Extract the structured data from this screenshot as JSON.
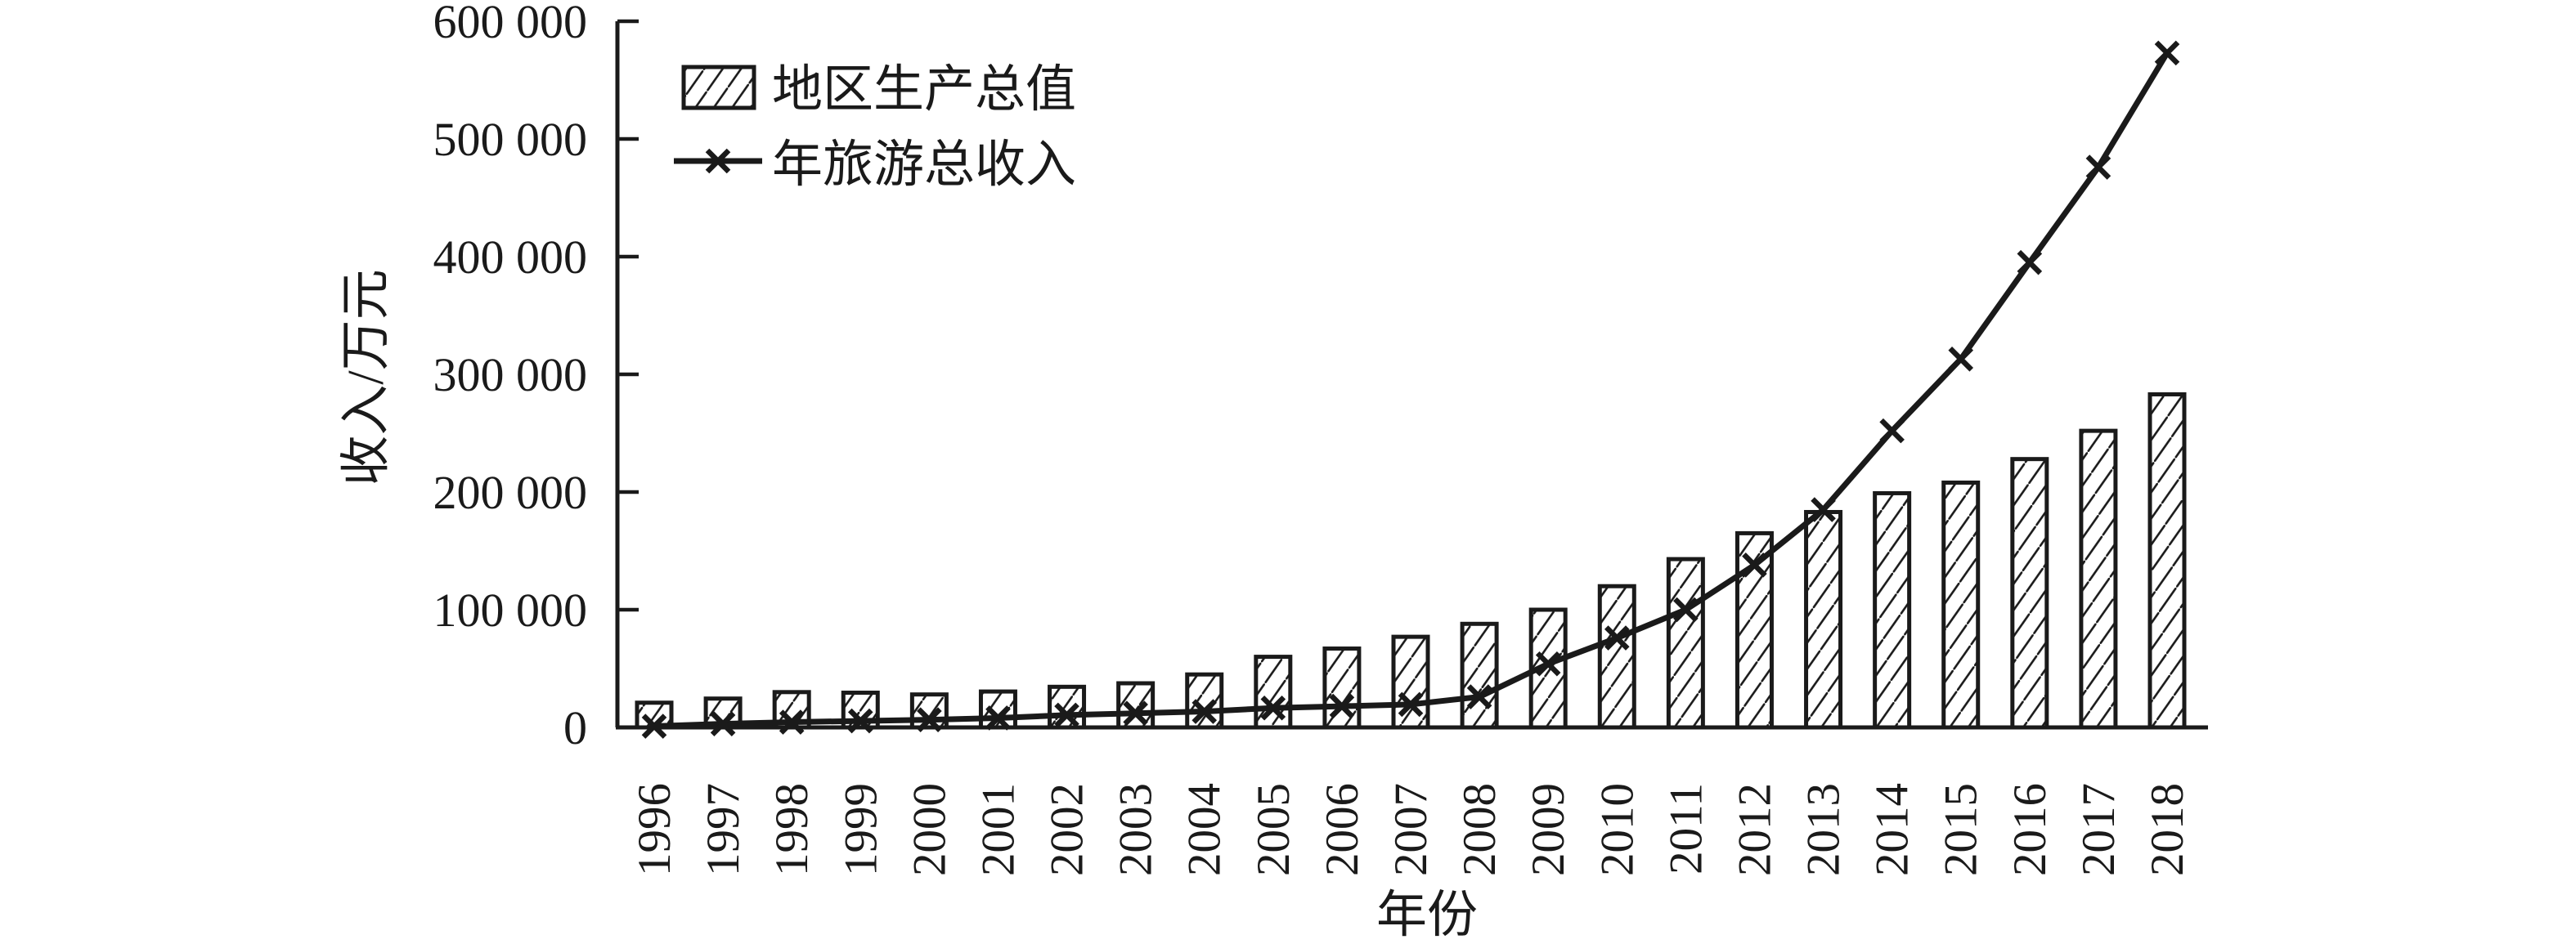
{
  "chart_data": {
    "type": "combo",
    "title": "",
    "xlabel": "年份",
    "ylabel": "收入/万元",
    "unit": "万元",
    "categories": [
      "1996",
      "1997",
      "1998",
      "1999",
      "2000",
      "2001",
      "2002",
      "2003",
      "2004",
      "2005",
      "2006",
      "2007",
      "2008",
      "2009",
      "2010",
      "2011",
      "2012",
      "2013",
      "2014",
      "2015",
      "2016",
      "2017",
      "2018"
    ],
    "series": [
      {
        "name": "地区生产总值",
        "type": "bar",
        "style": "white fill with diagonal hatch, black outline",
        "values": [
          21000,
          24500,
          30000,
          29500,
          28000,
          30500,
          34500,
          37500,
          45000,
          60000,
          67000,
          77000,
          88000,
          100000,
          120000,
          143000,
          165000,
          183000,
          199000,
          208000,
          228000,
          252000,
          283000
        ]
      },
      {
        "name": "年旅游总收入",
        "type": "line",
        "marker": "x",
        "style": "solid black line with x markers",
        "values": [
          1000,
          3000,
          4500,
          5500,
          6500,
          8000,
          10500,
          12000,
          13500,
          16500,
          18000,
          19500,
          26000,
          54000,
          76000,
          100000,
          138000,
          185000,
          252000,
          313000,
          395000,
          476000,
          573000
        ]
      }
    ],
    "ylim": [
      0,
      600000
    ],
    "ytick_step": 100000,
    "ytick_labels": [
      "0",
      "100 000",
      "200 000",
      "300 000",
      "400 000",
      "500 000",
      "600 000"
    ],
    "grid": "off",
    "legend_position": "top-left-inside",
    "colors": {
      "ink": "#1a1a1a",
      "background": "#ffffff"
    }
  }
}
